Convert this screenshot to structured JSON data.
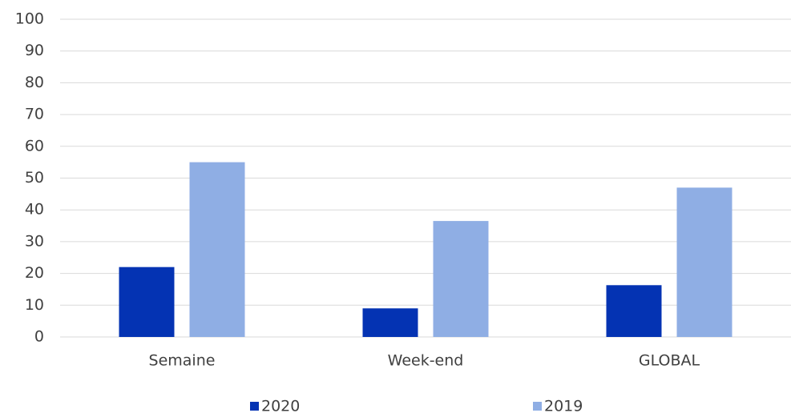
{
  "chart_data": {
    "type": "bar",
    "categories": [
      "Semaine",
      "Week-end",
      "GLOBAL"
    ],
    "series": [
      {
        "name": "2020",
        "color": "#0433b3",
        "values": [
          22,
          9,
          16.3
        ]
      },
      {
        "name": "2019",
        "color": "#8faee4",
        "values": [
          55,
          36.5,
          47
        ]
      }
    ],
    "ylim": [
      0,
      100
    ],
    "yticks": [
      0,
      10,
      20,
      30,
      40,
      50,
      60,
      70,
      80,
      90,
      100
    ],
    "grid": true,
    "legend": "bottom"
  }
}
